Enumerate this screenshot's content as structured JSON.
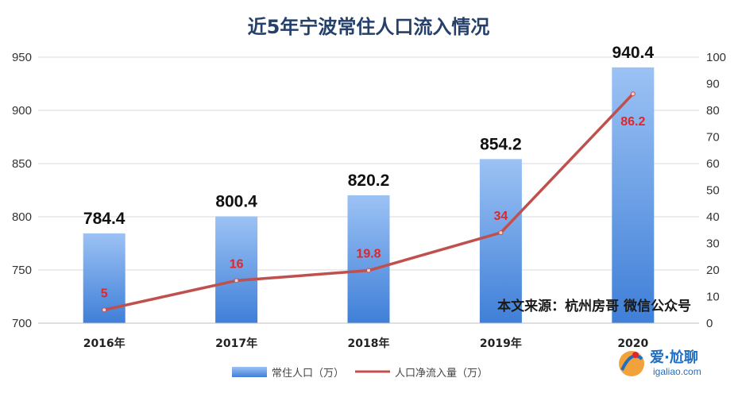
{
  "chart_data": {
    "type": "bar",
    "title": "近5年宁波常住人口流入情况",
    "categories": [
      "2016年",
      "2017年",
      "2018年",
      "2019年",
      "2020"
    ],
    "series": [
      {
        "name": "常住人口（万）",
        "type": "bar",
        "axis": "left",
        "values": [
          784.4,
          800.4,
          820.2,
          854.2,
          940.4
        ],
        "labels": [
          "784.4",
          "800.4",
          "820.2",
          "854.2",
          "940.4"
        ]
      },
      {
        "name": "人口净流入量（万）",
        "type": "line",
        "axis": "right",
        "values": [
          5,
          16,
          19.8,
          34,
          86.2
        ],
        "labels": [
          "5",
          "16",
          "19.8",
          "34",
          "86.2"
        ]
      }
    ],
    "y_left": {
      "min": 700,
      "max": 950,
      "ticks": [
        "700",
        "750",
        "800",
        "850",
        "900",
        "950"
      ]
    },
    "y_right": {
      "min": 0,
      "max": 100,
      "ticks": [
        "0",
        "10",
        "20",
        "30",
        "40",
        "50",
        "60",
        "70",
        "80",
        "90",
        "100"
      ]
    },
    "grid": true,
    "legend": "bottom",
    "colors": {
      "bar_top": "#9cc2f4",
      "bar_bottom": "#3f7fd8",
      "line": "#c0504d",
      "line_label": "#e0262b"
    }
  },
  "annotations": {
    "source": "本文来源：杭州房哥 微信公众号"
  },
  "watermark": {
    "text": "爱·尬聊",
    "url": "igaliao.com"
  }
}
